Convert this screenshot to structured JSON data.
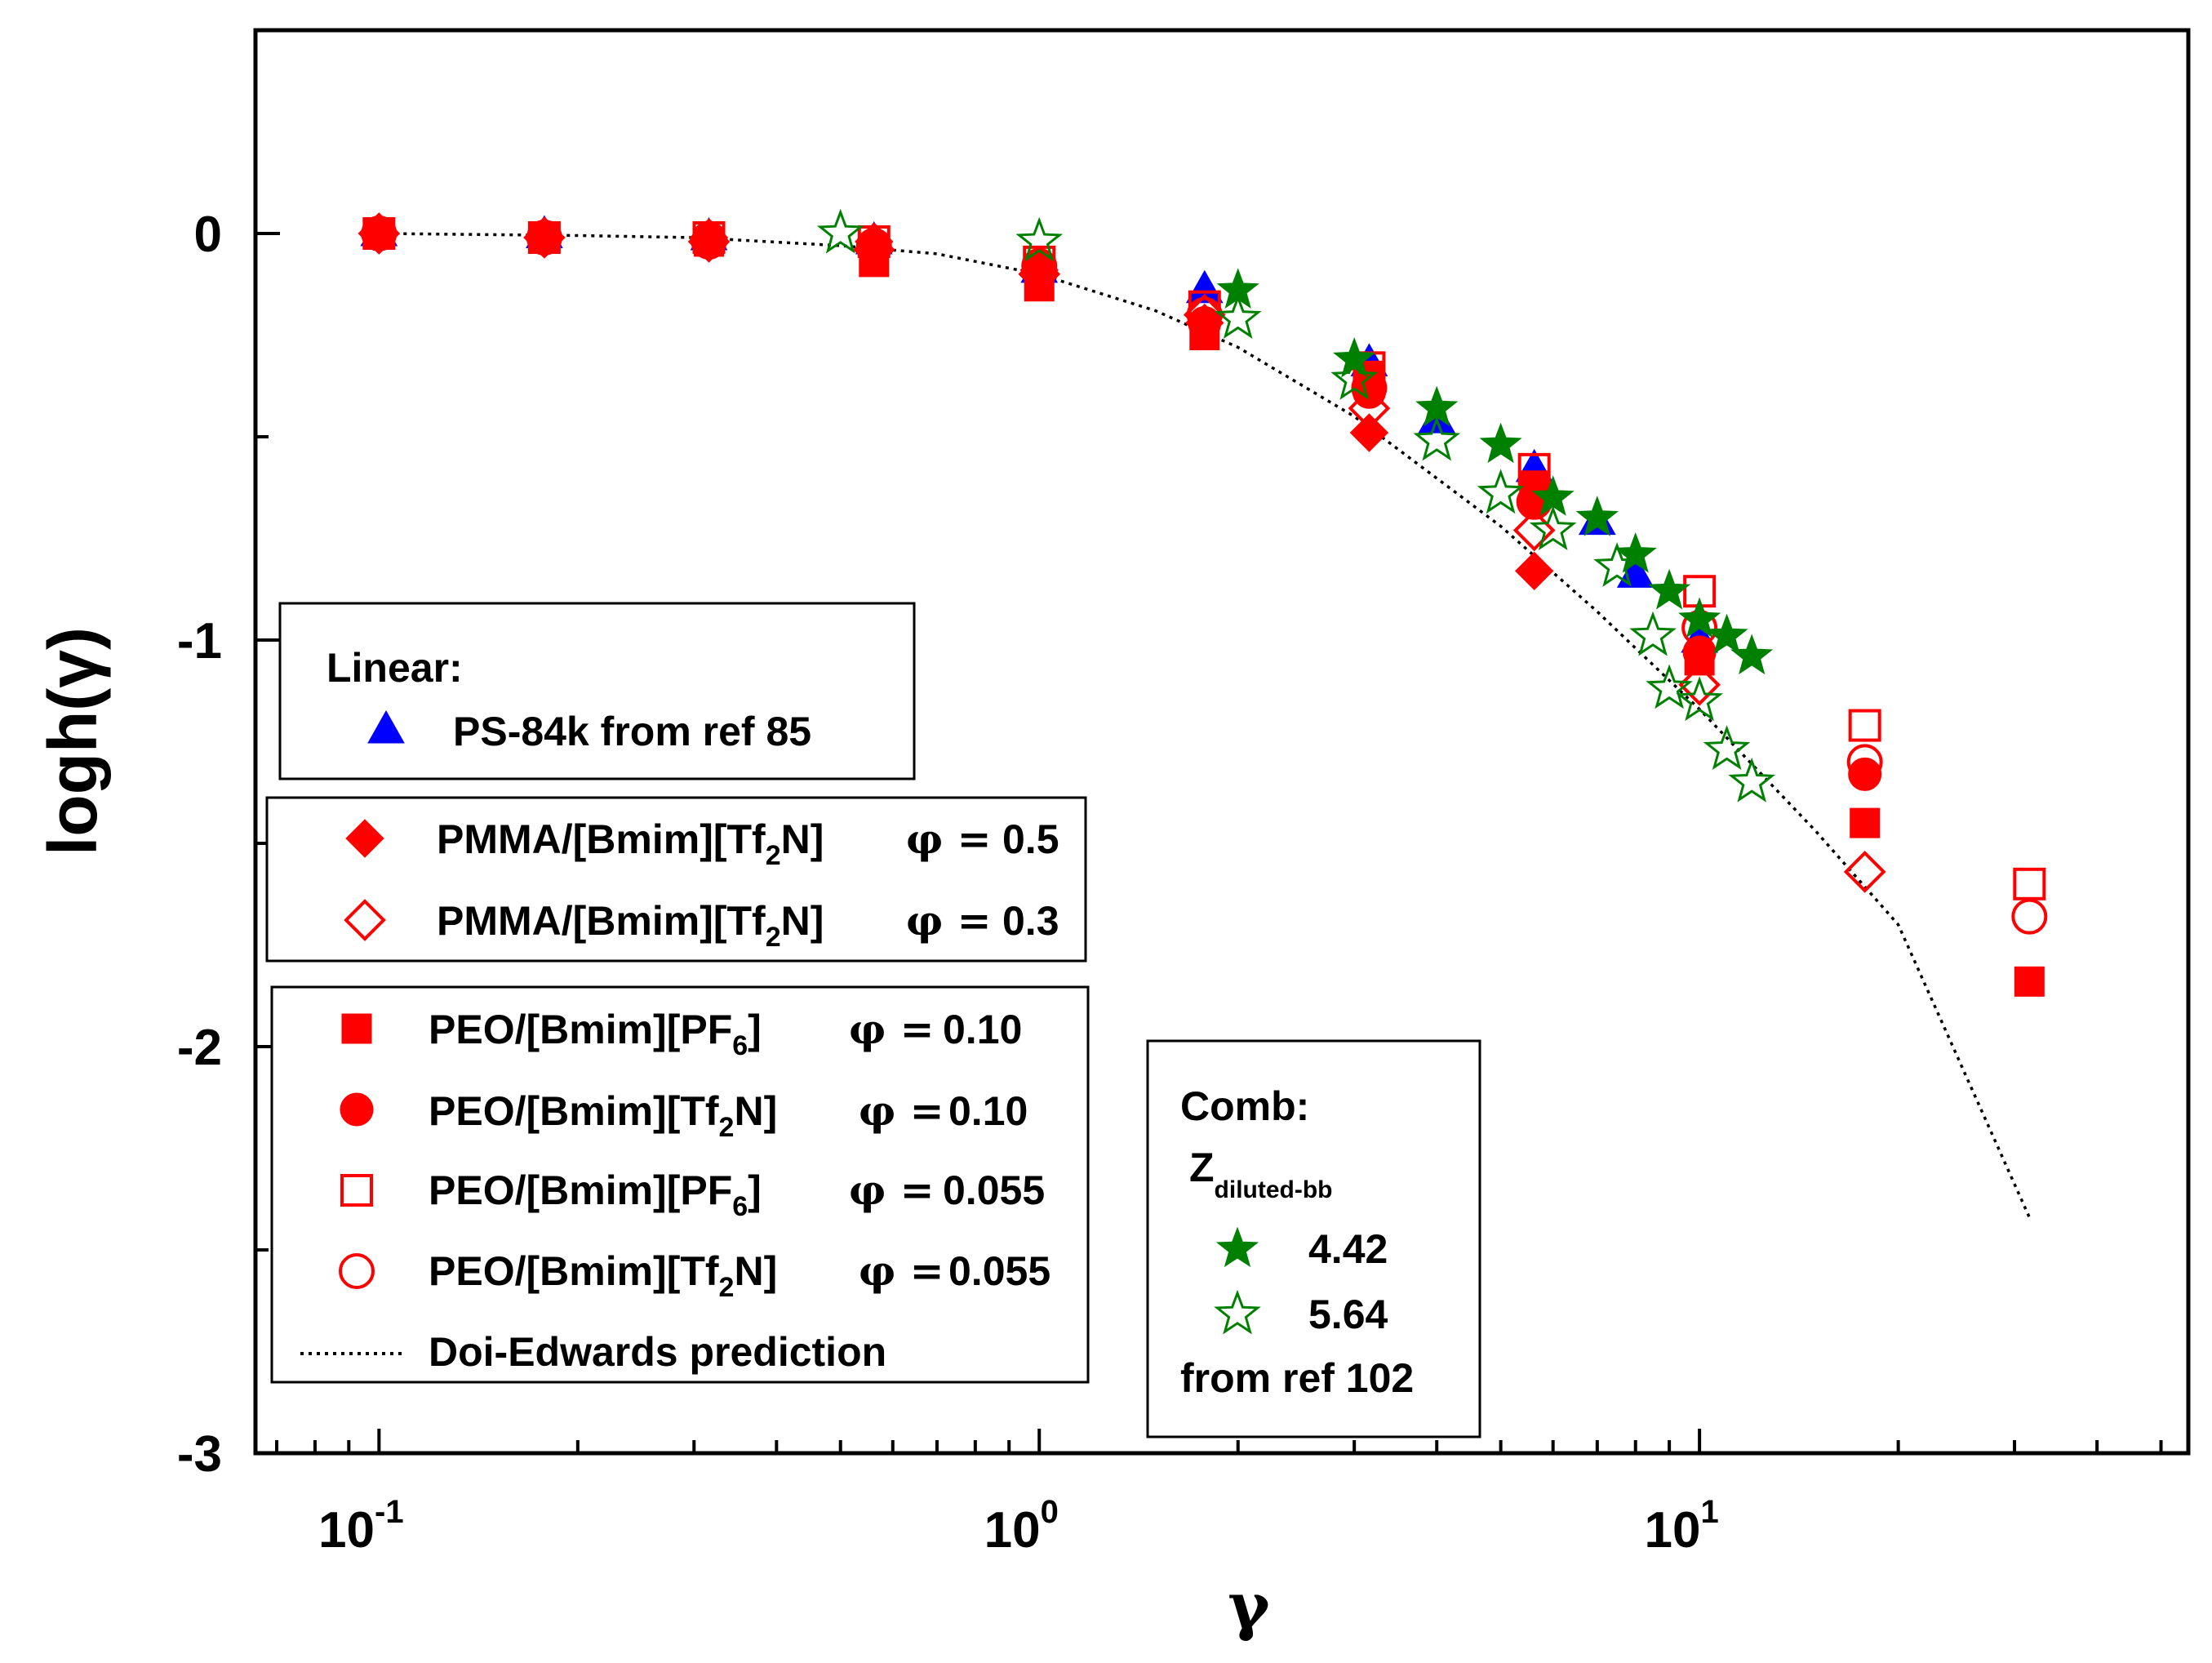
{
  "chart_data": {
    "type": "scatter",
    "title": "",
    "xlabel": "γ",
    "ylabel": "logh(γ)",
    "xscale": "log",
    "xlim": [
      0.065,
      55
    ],
    "ylim": [
      -3,
      0.5
    ],
    "x_tick_labels": [
      {
        "value": 0.1,
        "base": "10",
        "exp": "-1"
      },
      {
        "value": 1,
        "base": "10",
        "exp": "0"
      },
      {
        "value": 10,
        "base": "10",
        "exp": "1"
      }
    ],
    "y_tick_labels": [
      {
        "value": 0,
        "label": "0"
      },
      {
        "value": -1,
        "label": "-1"
      },
      {
        "value": -2,
        "label": "-2"
      },
      {
        "value": -3,
        "label": "-3"
      }
    ],
    "series": [
      {
        "name": "PS-84k from ref 85",
        "marker": "triangle",
        "filled": true,
        "color": "#0000ff",
        "x": [
          0.1,
          0.178,
          0.316,
          0.562,
          1.0,
          1.78,
          3.16,
          4.0,
          5.62,
          7.0,
          8.0,
          10.0
        ],
        "y": [
          0.0,
          -0.005,
          -0.01,
          -0.02,
          -0.09,
          -0.14,
          -0.32,
          -0.46,
          -0.58,
          -0.71,
          -0.84,
          -1.0
        ]
      },
      {
        "name": "PMMA/[Bmim][Tf2N] φ = 0.5",
        "marker": "diamond",
        "filled": true,
        "color": "#ff0000",
        "x": [
          0.1,
          0.178,
          0.316,
          0.562,
          1.0,
          1.78,
          3.16,
          5.62
        ],
        "y": [
          0.0,
          -0.01,
          -0.01,
          -0.02,
          -0.09,
          -0.22,
          -0.49,
          -0.83
        ]
      },
      {
        "name": "PMMA/[Bmim][Tf2N] φ = 0.3",
        "marker": "diamond",
        "filled": false,
        "color": "#ff0000",
        "x": [
          0.1,
          0.178,
          0.316,
          0.562,
          1.0,
          1.78,
          3.16,
          5.62,
          10.0,
          17.8
        ],
        "y": [
          0.0,
          -0.01,
          -0.02,
          -0.04,
          -0.1,
          -0.2,
          -0.43,
          -0.73,
          -1.11,
          -1.57
        ]
      },
      {
        "name": "PEO/[Bmim][PF6] φ = 0.10",
        "marker": "square",
        "filled": true,
        "color": "#ff0000",
        "x": [
          0.1,
          0.178,
          0.316,
          0.562,
          1.0,
          1.78,
          3.16,
          5.62,
          10.0,
          17.8,
          31.6
        ],
        "y": [
          0.0,
          -0.01,
          -0.02,
          -0.07,
          -0.13,
          -0.25,
          -0.35,
          -0.62,
          -1.05,
          -1.45,
          -1.84
        ]
      },
      {
        "name": "PEO/[Bmim][Tf2N] φ = 0.10",
        "marker": "circle",
        "filled": true,
        "color": "#ff0000",
        "x": [
          0.1,
          0.178,
          0.316,
          0.562,
          1.0,
          1.78,
          3.16,
          5.62,
          10.0,
          17.8
        ],
        "y": [
          0.0,
          -0.01,
          -0.01,
          -0.03,
          -0.08,
          -0.22,
          -0.39,
          -0.66,
          -1.03,
          -1.33
        ]
      },
      {
        "name": "PEO/[Bmim][PF6] φ = 0.055",
        "marker": "square",
        "filled": false,
        "color": "#ff0000",
        "x": [
          0.1,
          0.178,
          0.316,
          0.562,
          1.0,
          1.78,
          3.16,
          5.62,
          10.0,
          17.8,
          31.6
        ],
        "y": [
          0.0,
          -0.01,
          -0.01,
          -0.02,
          -0.07,
          -0.18,
          -0.33,
          -0.58,
          -0.88,
          -1.21,
          -1.6
        ]
      },
      {
        "name": "PEO/[Bmim][Tf2N] φ = 0.055",
        "marker": "circle",
        "filled": false,
        "color": "#ff0000",
        "x": [
          0.1,
          0.178,
          0.316,
          0.562,
          1.0,
          1.78,
          3.16,
          5.62,
          10.0,
          17.8,
          31.6
        ],
        "y": [
          0.0,
          -0.01,
          -0.02,
          -0.03,
          -0.08,
          -0.2,
          -0.38,
          -0.66,
          -0.97,
          -1.3,
          -1.68
        ]
      },
      {
        "name": "Zdiluted-bb 4.42 from ref 102",
        "marker": "star",
        "filled": true,
        "color": "#008000",
        "x": [
          2.0,
          3.0,
          4.0,
          5.0,
          6.0,
          7.0,
          8.0,
          9.0,
          10.0,
          11.0,
          12.0
        ],
        "y": [
          -0.14,
          -0.31,
          -0.43,
          -0.52,
          -0.65,
          -0.7,
          -0.79,
          -0.88,
          -0.95,
          -0.99,
          -1.04
        ]
      },
      {
        "name": "Zdiluted-bb 5.64 from ref 102",
        "marker": "star",
        "filled": false,
        "color": "#008000",
        "x": [
          0.5,
          1.0,
          2.0,
          3.0,
          4.0,
          5.0,
          6.0,
          7.5,
          8.5,
          9.0,
          10.0,
          11.0,
          12.0
        ],
        "y": [
          0.0,
          -0.02,
          -0.21,
          -0.36,
          -0.51,
          -0.64,
          -0.73,
          -0.82,
          -0.99,
          -1.12,
          -1.15,
          -1.27,
          -1.35
        ]
      }
    ],
    "reference_line": {
      "name": "Doi-Edwards prediction",
      "style": "dotted",
      "color": "#000000",
      "x": [
        0.1,
        0.2,
        0.3,
        0.5,
        0.7,
        1.0,
        1.5,
        2.0,
        3.0,
        5.0,
        7.0,
        10.0,
        15.0,
        20.0,
        31.6
      ],
      "y": [
        0.0,
        -0.005,
        -0.01,
        -0.03,
        -0.05,
        -0.1,
        -0.19,
        -0.28,
        -0.45,
        -0.72,
        -0.93,
        -1.17,
        -1.47,
        -1.7,
        -2.42
      ]
    },
    "legend": {
      "linear": {
        "header": "Linear:",
        "items": [
          {
            "label": "PS-84k from ref 85",
            "series": 0
          }
        ]
      },
      "pmma": {
        "items": [
          {
            "prefix": "PMMA/[Bmim][Tf",
            "sub": "2",
            "suffix": "N]",
            "phi": "φ =",
            "value": "0.5",
            "series": 1
          },
          {
            "prefix": "PMMA/[Bmim][Tf",
            "sub": "2",
            "suffix": "N]",
            "phi": "φ =",
            "value": "0.3",
            "series": 2
          }
        ]
      },
      "peo": {
        "items": [
          {
            "prefix": "PEO/[Bmim][PF",
            "sub": "6",
            "suffix": "]",
            "phi": "φ =",
            "value": "0.10",
            "series": 3
          },
          {
            "prefix": "PEO/[Bmim][Tf",
            "sub": "2",
            "suffix": "N]",
            "phi": "φ =",
            "value": "0.10",
            "series": 4
          },
          {
            "prefix": "PEO/[Bmim][PF",
            "sub": "6",
            "suffix": "]",
            "phi": "φ =",
            "value": "0.055",
            "series": 5
          },
          {
            "prefix": "PEO/[Bmim][Tf",
            "sub": "2",
            "suffix": "N]",
            "phi": "φ =",
            "value": "0.055",
            "series": 6
          }
        ],
        "line_label": "Doi-Edwards prediction"
      },
      "comb": {
        "header": "Comb:",
        "z_main": "Z",
        "z_sub": "diluted-bb",
        "items": [
          {
            "label": "4.42",
            "series": 7
          },
          {
            "label": "5.64",
            "series": 8
          }
        ],
        "footer": "from ref 102"
      }
    }
  }
}
